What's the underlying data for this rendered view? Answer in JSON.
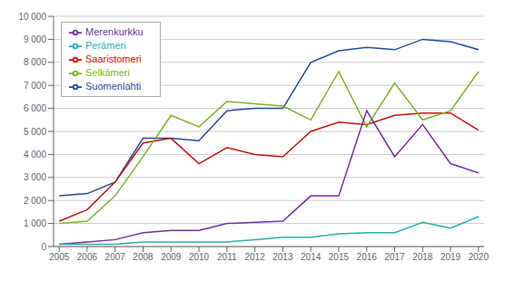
{
  "chart_data": {
    "type": "line",
    "x": [
      2005,
      2006,
      2007,
      2008,
      2009,
      2010,
      2011,
      2012,
      2013,
      2014,
      2015,
      2016,
      2017,
      2018,
      2019,
      2020
    ],
    "series": [
      {
        "name": "Suomenlahti",
        "color": "#1F4E9B",
        "values": [
          2200,
          2300,
          2800,
          4700,
          4700,
          4600,
          5900,
          6000,
          6000,
          8000,
          8500,
          8650,
          8550,
          9000,
          8900,
          8550
        ]
      },
      {
        "name": "Saaristomeri",
        "color": "#C0180C",
        "values": [
          1100,
          1600,
          2800,
          4500,
          4700,
          3600,
          4300,
          4000,
          3900,
          5000,
          5400,
          5300,
          5700,
          5800,
          5800,
          5050
        ]
      },
      {
        "name": "Selkämeri",
        "color": "#7DB32A",
        "values": [
          1000,
          1100,
          2200,
          3900,
          5700,
          5200,
          6300,
          6200,
          6100,
          5500,
          7600,
          5200,
          7100,
          5500,
          5900,
          7600
        ]
      },
      {
        "name": "Merenkurkku",
        "color": "#7030A0",
        "values": [
          100,
          200,
          300,
          600,
          700,
          700,
          1000,
          1050,
          1100,
          2200,
          2200,
          5900,
          3900,
          5300,
          3600,
          3200
        ]
      },
      {
        "name": "Perämeri",
        "color": "#2AAFAD",
        "values": [
          100,
          100,
          100,
          200,
          200,
          200,
          200,
          300,
          400,
          400,
          550,
          600,
          600,
          1050,
          800,
          1300
        ]
      }
    ],
    "xlim": [
      2004.8,
      2020.2
    ],
    "xticks": [
      2005,
      2006,
      2007,
      2008,
      2009,
      2010,
      2011,
      2012,
      2013,
      2014,
      2015,
      2016,
      2017,
      2018,
      2019,
      2020
    ],
    "ylim": [
      0,
      10000
    ],
    "yticks": [
      0,
      {
        "value": 1000,
        "label": "1 000"
      },
      {
        "value": 2000,
        "label": "2 000"
      },
      {
        "value": 3000,
        "label": "3 000"
      },
      {
        "value": 4000,
        "label": "4 000"
      },
      {
        "value": 5000,
        "label": "5 000"
      },
      {
        "value": 6000,
        "label": "6 000"
      },
      {
        "value": 7000,
        "label": "7 000"
      },
      {
        "value": 8000,
        "label": "8 000"
      },
      {
        "value": 9000,
        "label": "9 000"
      },
      {
        "value": 10000,
        "label": "10 000"
      }
    ],
    "grid": true,
    "legend": "upper left"
  }
}
